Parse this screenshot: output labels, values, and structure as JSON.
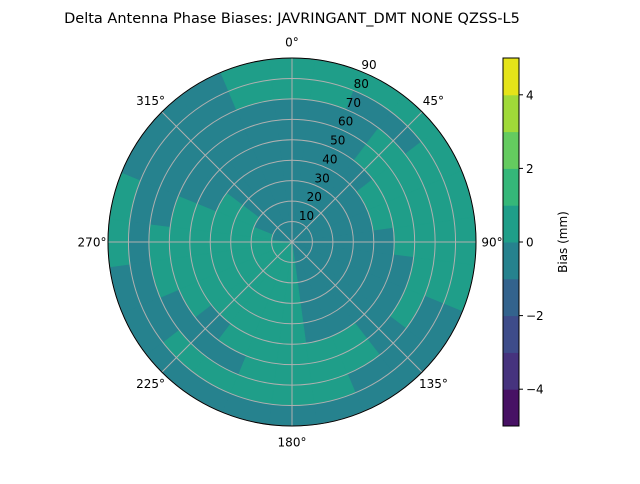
{
  "chart_data": {
    "type": "heatmap",
    "subtype": "polar-contour",
    "title": "Delta Antenna Phase Biases: JAVRINGANT_DMT  NONE QZSS-L5",
    "theta_direction": "clockwise",
    "theta_zero": "north",
    "theta_tick_labels": [
      "0°",
      "45°",
      "90°",
      "135°",
      "180°",
      "225°",
      "270°",
      "315°"
    ],
    "theta_ticks": [
      0,
      45,
      90,
      135,
      180,
      225,
      270,
      315
    ],
    "r_tick_labels": [
      "10",
      "20",
      "30",
      "40",
      "50",
      "60",
      "70",
      "80",
      "90"
    ],
    "r_ticks": [
      10,
      20,
      30,
      40,
      50,
      60,
      70,
      80,
      90
    ],
    "rlim": [
      0,
      90
    ],
    "grid": true,
    "azimuth_step_deg": 15,
    "radial_step": 10,
    "azimuths": [
      0,
      15,
      30,
      45,
      60,
      75,
      90,
      105,
      120,
      135,
      150,
      165,
      180,
      195,
      210,
      225,
      240,
      255,
      270,
      285,
      300,
      315,
      330,
      345
    ],
    "bias_grid_mm": [
      [
        -0.5,
        -0.5,
        -0.5,
        -0.5,
        -0.5,
        -0.5,
        -0.5,
        0.5,
        0.5
      ],
      [
        -0.5,
        -0.5,
        -0.5,
        -0.5,
        -0.5,
        -0.5,
        -0.5,
        0.5,
        0.5
      ],
      [
        -0.5,
        -0.5,
        -0.5,
        -0.5,
        -0.5,
        -0.5,
        -0.5,
        -0.5,
        0.5
      ],
      [
        -0.5,
        -0.5,
        -0.5,
        -0.5,
        -0.5,
        0.5,
        0.5,
        -0.5,
        0.5
      ],
      [
        -0.5,
        -0.5,
        -0.5,
        -0.5,
        0.5,
        0.5,
        0.5,
        0.5,
        0.5
      ],
      [
        -0.5,
        -0.5,
        -0.5,
        -0.5,
        0.5,
        0.5,
        0.5,
        0.5,
        0.5
      ],
      [
        -0.5,
        -0.5,
        -0.5,
        -0.5,
        -0.5,
        0.5,
        0.5,
        0.5,
        0.5
      ],
      [
        -0.5,
        -0.5,
        -0.5,
        -0.5,
        -0.5,
        -0.5,
        0.5,
        0.5,
        0.5
      ],
      [
        -0.5,
        -0.5,
        -0.5,
        -0.5,
        -0.5,
        -0.5,
        0.5,
        -0.5,
        -0.5
      ],
      [
        -0.5,
        -0.5,
        -0.5,
        -0.5,
        -0.5,
        -0.5,
        -0.5,
        -0.5,
        -0.5
      ],
      [
        -0.5,
        -0.5,
        -0.5,
        -0.5,
        -0.5,
        0.5,
        0.5,
        -0.5,
        -0.5
      ],
      [
        -0.5,
        -0.5,
        -0.5,
        -0.5,
        -0.5,
        0.5,
        0.5,
        0.5,
        -0.5
      ],
      [
        0.5,
        0.5,
        0.5,
        0.5,
        0.5,
        0.5,
        0.5,
        0.5,
        -0.5
      ],
      [
        0.5,
        0.5,
        0.5,
        0.5,
        0.5,
        0.5,
        0.5,
        0.5,
        -0.5
      ],
      [
        0.5,
        0.5,
        0.5,
        0.5,
        0.5,
        0.5,
        -0.5,
        0.5,
        -0.5
      ],
      [
        0.5,
        0.5,
        0.5,
        0.5,
        0.5,
        -0.5,
        -0.5,
        0.5,
        -0.5
      ],
      [
        0.5,
        0.5,
        0.5,
        0.5,
        0.5,
        0.5,
        -0.5,
        -0.5,
        -0.5
      ],
      [
        0.5,
        0.5,
        0.5,
        0.5,
        0.5,
        0.5,
        0.5,
        -0.5,
        -0.5
      ],
      [
        0.5,
        0.5,
        0.5,
        0.5,
        0.5,
        0.5,
        0.5,
        -0.5,
        0.5
      ],
      [
        -0.5,
        0.5,
        0.5,
        0.5,
        0.5,
        0.5,
        -0.5,
        -0.5,
        0.5
      ],
      [
        -0.5,
        -0.5,
        0.5,
        0.5,
        -0.5,
        -0.5,
        -0.5,
        -0.5,
        -0.5
      ],
      [
        -0.5,
        -0.5,
        -0.5,
        -0.5,
        -0.5,
        -0.5,
        -0.5,
        -0.5,
        -0.5
      ],
      [
        -0.5,
        -0.5,
        -0.5,
        -0.5,
        -0.5,
        -0.5,
        -0.5,
        -0.5,
        -0.5
      ],
      [
        -0.5,
        -0.5,
        -0.5,
        -0.5,
        -0.5,
        -0.5,
        -0.5,
        0.5,
        0.5
      ]
    ],
    "colorbar": {
      "label": "Bias (mm)",
      "levels": [
        -5,
        -4,
        -3,
        -2,
        -1,
        0,
        1,
        2,
        3,
        4,
        5
      ],
      "tick_values": [
        -4,
        -2,
        0,
        2,
        4
      ],
      "tick_labels": [
        "−4",
        "−2",
        "0",
        "2",
        "4"
      ],
      "colormap": "viridis",
      "colors": [
        "#471164",
        "#46337e",
        "#3e4c8a",
        "#33638d",
        "#26828e",
        "#1f9e89",
        "#35b779",
        "#64cb5f",
        "#a0da39",
        "#e5e419"
      ]
    }
  }
}
